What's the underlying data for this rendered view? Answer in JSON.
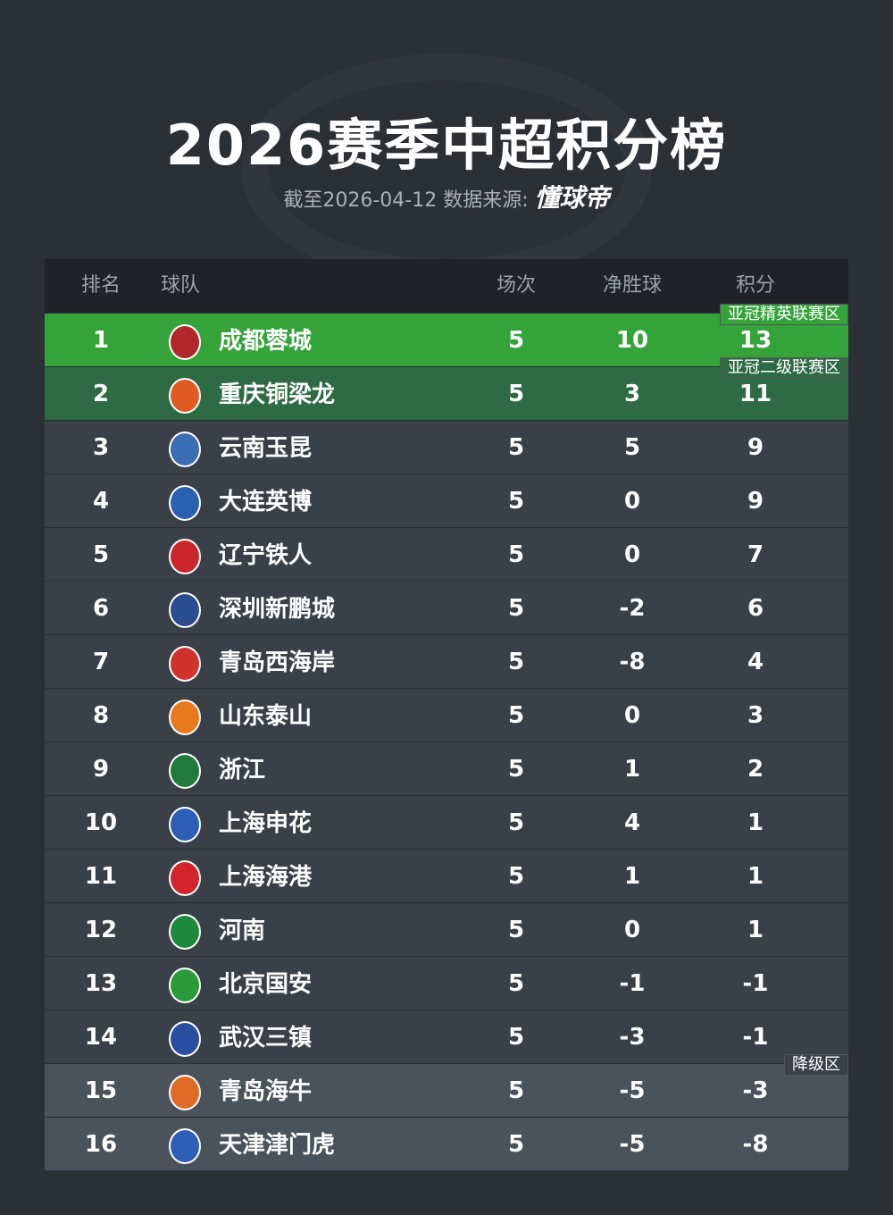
{
  "header": {
    "title": "2026赛季中超积分榜",
    "date_note": "截至2026-04-12 数据来源:",
    "source": "懂球帝"
  },
  "table": {
    "columns": [
      "排名",
      "球队",
      "场次",
      "净胜球",
      "积分"
    ],
    "rows": [
      [
        1,
        "成都蓉城",
        5,
        10,
        13
      ],
      [
        2,
        "重庆铜梁龙",
        5,
        3,
        11
      ],
      [
        3,
        "云南玉昆",
        5,
        5,
        9
      ],
      [
        4,
        "大连英博",
        5,
        0,
        9
      ],
      [
        5,
        "辽宁铁人",
        5,
        0,
        7
      ],
      [
        6,
        "深圳新鹏城",
        5,
        -2,
        6
      ],
      [
        7,
        "青岛西海岸",
        5,
        -8,
        4
      ],
      [
        8,
        "山东泰山",
        5,
        0,
        3
      ],
      [
        9,
        "浙江",
        5,
        1,
        2
      ],
      [
        10,
        "上海申花",
        5,
        4,
        1
      ],
      [
        11,
        "上海海港",
        5,
        1,
        1
      ],
      [
        12,
        "河南",
        5,
        0,
        1
      ],
      [
        13,
        "北京国安",
        5,
        -1,
        -1
      ],
      [
        14,
        "武汉三镇",
        5,
        -3,
        -1
      ],
      [
        15,
        "青岛海牛",
        5,
        -5,
        -3
      ],
      [
        16,
        "天津津门虎",
        5,
        -5,
        -8
      ]
    ]
  },
  "zones": [
    "亚冠精英联赛区",
    "亚冠二级联赛区",
    "降级区"
  ]
}
